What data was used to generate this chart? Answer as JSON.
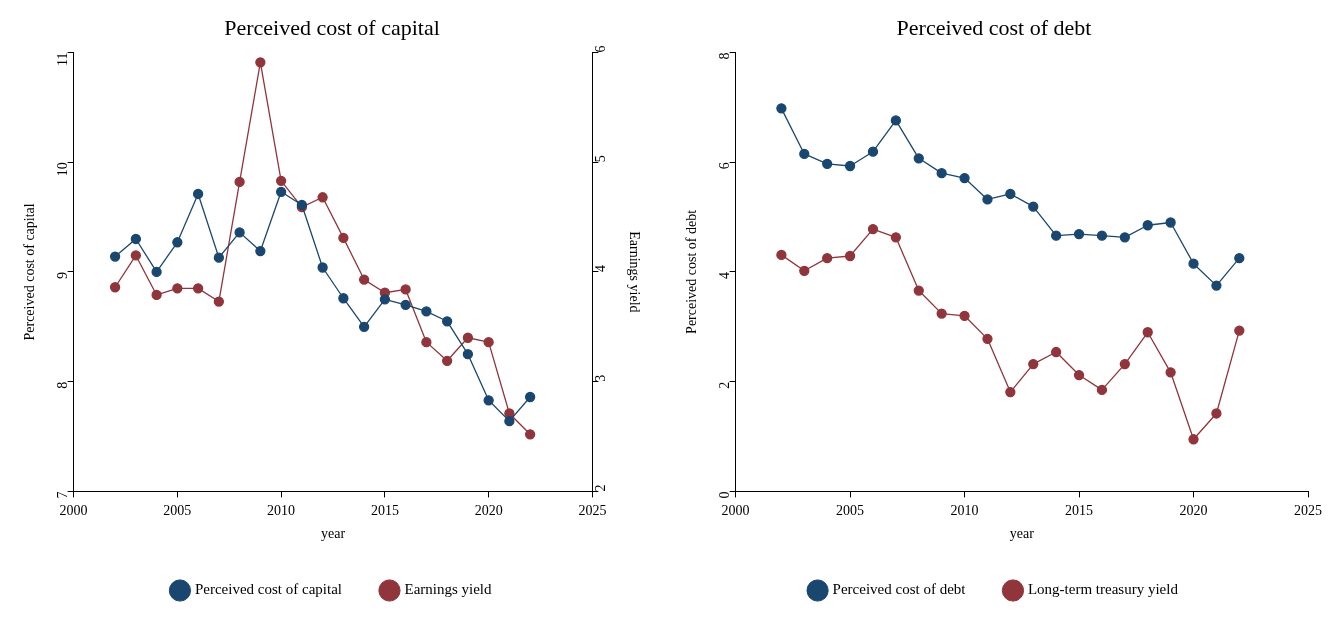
{
  "chart_data": [
    {
      "type": "line",
      "title": "Perceived cost of capital",
      "xlabel": "year",
      "ylabel": "Perceived cost of capital",
      "y2label": "Earnings yield",
      "x": [
        2002,
        2003,
        2004,
        2005,
        2006,
        2007,
        2008,
        2009,
        2010,
        2011,
        2012,
        2013,
        2014,
        2015,
        2016,
        2017,
        2018,
        2019,
        2020,
        2021,
        2022
      ],
      "xlim": [
        2000,
        2025
      ],
      "xticks": [
        2000,
        2005,
        2010,
        2015,
        2020,
        2025
      ],
      "ylim": [
        7,
        11
      ],
      "yticks": [
        7,
        8,
        9,
        10,
        11
      ],
      "y2lim": [
        2,
        6
      ],
      "y2ticks": [
        2,
        3,
        4,
        5,
        6
      ],
      "legend": "bottom",
      "marker": "circle",
      "grid": false,
      "series": [
        {
          "name": "Perceived cost of capital",
          "color": "#1a476f",
          "values": [
            9.14,
            9.3,
            9.0,
            9.27,
            9.71,
            9.13,
            9.36,
            9.19,
            9.73,
            9.61,
            9.04,
            8.76,
            8.5,
            8.75,
            8.7,
            8.64,
            8.55,
            8.25,
            7.83,
            7.64,
            7.86
          ]
        },
        {
          "name": "Earnings yield",
          "color": "#90353b",
          "axis": "y2",
          "values": [
            3.86,
            4.15,
            3.79,
            3.85,
            3.85,
            3.73,
            4.82,
            5.91,
            4.83,
            4.59,
            4.68,
            4.31,
            3.93,
            3.81,
            3.84,
            3.36,
            3.19,
            3.4,
            3.36,
            2.71,
            2.52
          ]
        }
      ]
    },
    {
      "type": "line",
      "title": "Perceived cost of debt",
      "xlabel": "year",
      "ylabel": "Perceived cost of debt",
      "x": [
        2002,
        2003,
        2004,
        2005,
        2006,
        2007,
        2008,
        2009,
        2010,
        2011,
        2012,
        2013,
        2014,
        2015,
        2016,
        2017,
        2018,
        2019,
        2020,
        2021,
        2022
      ],
      "xlim": [
        2000,
        2025
      ],
      "xticks": [
        2000,
        2005,
        2010,
        2015,
        2020,
        2025
      ],
      "ylim": [
        0,
        8
      ],
      "yticks": [
        0,
        2,
        4,
        6,
        8
      ],
      "legend": "bottom",
      "marker": "circle",
      "grid": false,
      "series": [
        {
          "name": "Perceived cost of debt",
          "color": "#1a476f",
          "values": [
            6.98,
            6.15,
            5.97,
            5.93,
            6.19,
            6.76,
            6.07,
            5.8,
            5.71,
            5.32,
            5.42,
            5.19,
            4.66,
            4.69,
            4.66,
            4.63,
            4.85,
            4.9,
            4.15,
            3.75,
            4.25
          ]
        },
        {
          "name": "Long-term treasury yield",
          "color": "#90353b",
          "values": [
            4.31,
            4.02,
            4.25,
            4.29,
            4.78,
            4.63,
            3.66,
            3.24,
            3.2,
            2.78,
            1.81,
            2.32,
            2.54,
            2.12,
            1.85,
            2.32,
            2.9,
            2.17,
            0.95,
            1.42,
            2.93
          ]
        }
      ]
    }
  ]
}
